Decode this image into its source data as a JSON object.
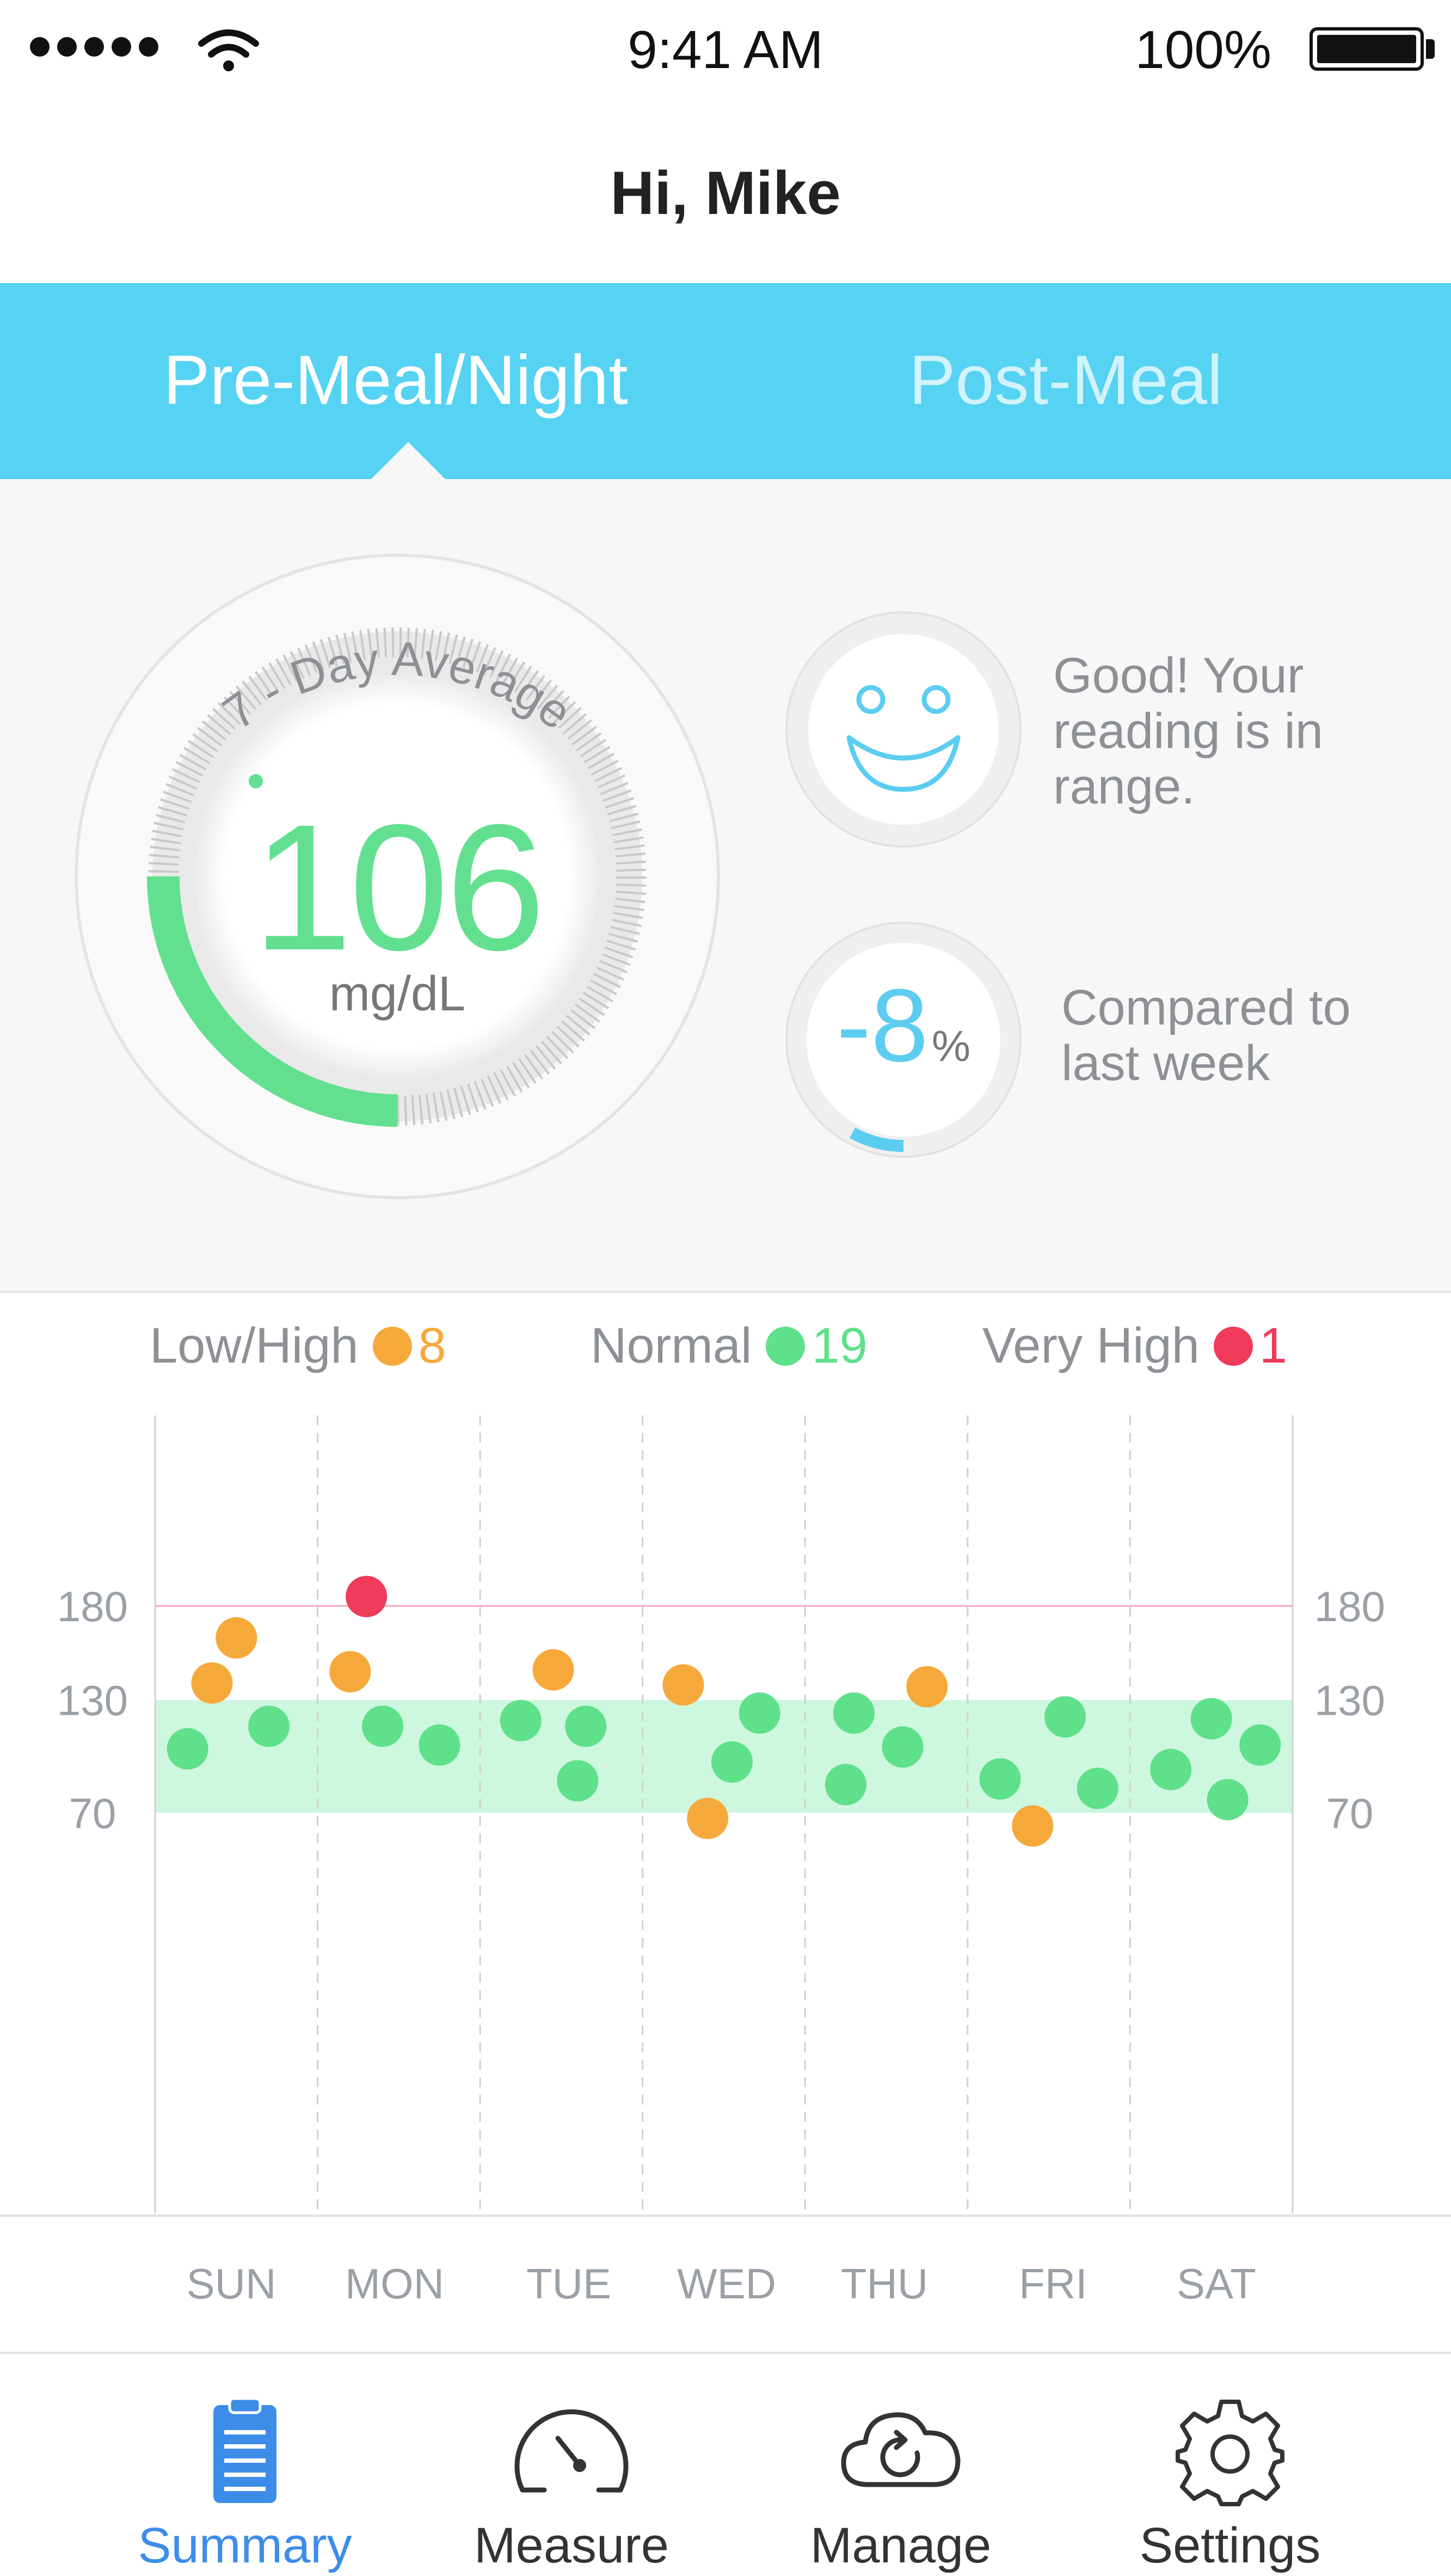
{
  "status_bar": {
    "time": "9:41 AM",
    "battery": "100%",
    "battery_level": 1.0,
    "signal_dots": 5,
    "wifi_icon": "wifi-icon"
  },
  "header": {
    "greeting": "Hi, Mike"
  },
  "tabs": [
    {
      "label": "Pre-Meal/Night",
      "active": true
    },
    {
      "label": "Post-Meal",
      "active": false
    }
  ],
  "summary": {
    "gauge_title": "7 - Day Average",
    "average_value": "106",
    "unit": "mg/dL",
    "gauge_fill_fraction": 0.25,
    "range_status_icon": "smiley-face-icon",
    "range_status_text": "Good! Your reading is in range.",
    "change_number": "-8",
    "change_unit": "%",
    "change_fraction": 0.08,
    "change_text": "Compared to last week"
  },
  "legend": [
    {
      "label": "Low/High",
      "count": "8",
      "color": "#f6a93b"
    },
    {
      "label": "Normal",
      "count": "19",
      "color": "#5fe08a"
    },
    {
      "label": "Very High",
      "count": "1",
      "color": "#f03a5a"
    }
  ],
  "colors": {
    "accent_blue": "#56d2f3",
    "normal_green": "#5fe08a",
    "low_high_orange": "#f6a93b",
    "very_high_red": "#f03a5a",
    "normal_band": "#cdf7de",
    "active_nav_blue": "#3d8de8"
  },
  "chart_data": {
    "type": "scatter",
    "title": "",
    "xlabel": "",
    "ylabel": "",
    "categories": [
      "SUN",
      "MON",
      "TUE",
      "WED",
      "THU",
      "FRI",
      "SAT"
    ],
    "ylim": [
      0,
      240
    ],
    "y_ticks": [
      "180",
      "130",
      "70"
    ],
    "y_tick_values": [
      180,
      130,
      70
    ],
    "normal_range": [
      70,
      130
    ],
    "high_line": 180,
    "grid": "vertical-dashed",
    "series": [
      {
        "name": "Normal",
        "color": "#5fe08a",
        "points": [
          {
            "day": 0,
            "offset": 0.2,
            "y": 104
          },
          {
            "day": 0,
            "offset": 0.7,
            "y": 116
          },
          {
            "day": 1,
            "offset": 0.4,
            "y": 116
          },
          {
            "day": 1,
            "offset": 0.75,
            "y": 106
          },
          {
            "day": 2,
            "offset": 0.25,
            "y": 119
          },
          {
            "day": 2,
            "offset": 0.65,
            "y": 116
          },
          {
            "day": 2,
            "offset": 0.6,
            "y": 87
          },
          {
            "day": 3,
            "offset": 0.55,
            "y": 97
          },
          {
            "day": 3,
            "offset": 0.72,
            "y": 123
          },
          {
            "day": 4,
            "offset": 0.3,
            "y": 123
          },
          {
            "day": 4,
            "offset": 0.6,
            "y": 105
          },
          {
            "day": 4,
            "offset": 0.25,
            "y": 85
          },
          {
            "day": 5,
            "offset": 0.2,
            "y": 88
          },
          {
            "day": 5,
            "offset": 0.6,
            "y": 121
          },
          {
            "day": 5,
            "offset": 0.8,
            "y": 83
          },
          {
            "day": 6,
            "offset": 0.25,
            "y": 93
          },
          {
            "day": 6,
            "offset": 0.5,
            "y": 120
          },
          {
            "day": 6,
            "offset": 0.6,
            "y": 77
          },
          {
            "day": 6,
            "offset": 0.8,
            "y": 106
          }
        ]
      },
      {
        "name": "Low/High",
        "color": "#f6a93b",
        "points": [
          {
            "day": 0,
            "offset": 0.35,
            "y": 139
          },
          {
            "day": 0,
            "offset": 0.5,
            "y": 163
          },
          {
            "day": 1,
            "offset": 0.2,
            "y": 145
          },
          {
            "day": 2,
            "offset": 0.45,
            "y": 146
          },
          {
            "day": 3,
            "offset": 0.25,
            "y": 138
          },
          {
            "day": 3,
            "offset": 0.4,
            "y": 67
          },
          {
            "day": 4,
            "offset": 0.75,
            "y": 137
          },
          {
            "day": 5,
            "offset": 0.4,
            "y": 63
          }
        ]
      },
      {
        "name": "Very High",
        "color": "#f03a5a",
        "points": [
          {
            "day": 1,
            "offset": 0.3,
            "y": 185
          }
        ]
      }
    ]
  },
  "bottom_nav": [
    {
      "label": "Summary",
      "icon": "clipboard-icon",
      "active": true
    },
    {
      "label": "Measure",
      "icon": "speedometer-icon",
      "active": false
    },
    {
      "label": "Manage",
      "icon": "cloud-sync-icon",
      "active": false
    },
    {
      "label": "Settings",
      "icon": "gear-icon",
      "active": false
    }
  ]
}
